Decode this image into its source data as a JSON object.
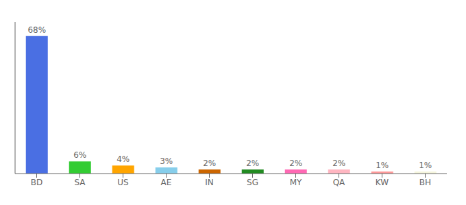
{
  "chart_data": {
    "type": "bar",
    "categories": [
      "BD",
      "SA",
      "US",
      "AE",
      "IN",
      "SG",
      "MY",
      "QA",
      "KW",
      "BH"
    ],
    "values": [
      68,
      6,
      4,
      3,
      2,
      2,
      2,
      2,
      1,
      1
    ],
    "value_labels": [
      "68%",
      "6%",
      "4%",
      "3%",
      "2%",
      "2%",
      "2%",
      "2%",
      "1%",
      "1%"
    ],
    "colors": [
      "#4A6FE3",
      "#33CC33",
      "#FFA500",
      "#87CEEB",
      "#CC6600",
      "#228B22",
      "#FF69B4",
      "#FFB6C1",
      "#FF9999",
      "#F5F5DC"
    ],
    "ylim": [
      0,
      75
    ],
    "data_labels": true,
    "tick_labels": "x",
    "grid": false
  }
}
